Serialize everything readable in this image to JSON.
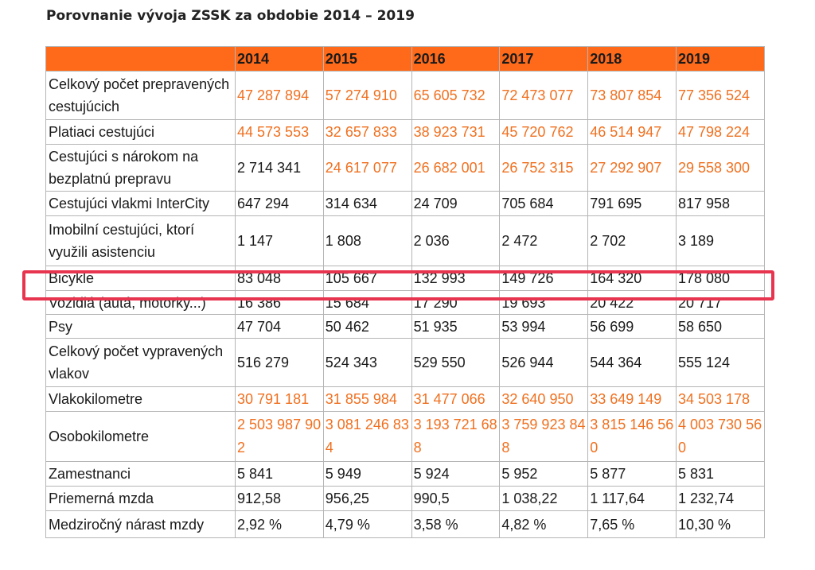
{
  "title": "Porovnanie vývoja ZSSK za obdobie 2014 – 2019",
  "colors": {
    "header_bg": "#ff6a1a",
    "value_orange": "#f0701f",
    "highlight": "#e8354f"
  },
  "years": [
    "2014",
    "2015",
    "2016",
    "2017",
    "2018",
    "2019"
  ],
  "rows": [
    {
      "label": "Celkový počet prepravených cestujúcich",
      "values": [
        "47 287 894",
        "57 274 910",
        "65 605 732",
        "72 473 077",
        "73 807 854",
        "77 356 524"
      ]
    },
    {
      "label": "Platiaci cestujúci",
      "values": [
        "44 573 553",
        "32 657 833",
        "38 923 731",
        "45 720 762",
        "46 514 947",
        "47 798 224"
      ]
    },
    {
      "label": "Cestujúci s nárokom na bezplatnú prepravu",
      "values": [
        "2 714 341",
        "24 617 077",
        "26 682 001",
        "26 752 315",
        "27 292 907",
        "29 558 300"
      ]
    },
    {
      "label": "Cestujúci vlakmi InterCity",
      "values": [
        "647 294",
        "314 634",
        "24 709",
        "705 684",
        "791 695",
        "817 958"
      ]
    },
    {
      "label": "Imobilní cestujúci, ktorí využili asistenciu",
      "values": [
        "1 147",
        "1 808",
        "2 036",
        "2 472",
        "2 702",
        "3 189"
      ]
    },
    {
      "label": "Bicykle",
      "values": [
        "83 048",
        "105 667",
        "132 993",
        "149 726",
        "164 320",
        "178 080"
      ]
    },
    {
      "label": "Vozidlá (autá, motorky...)",
      "values": [
        "16 386",
        "15 684",
        "17 290",
        "19 693",
        "20 422",
        "20 717"
      ]
    },
    {
      "label": "Psy",
      "values": [
        "47 704",
        "50 462",
        "51 935",
        "53 994",
        "56 699",
        "58 650"
      ]
    },
    {
      "label": "Celkový počet vypravených vlakov",
      "values": [
        "516 279",
        "524 343",
        "529 550",
        "526 944",
        "544 364",
        "555 124"
      ]
    },
    {
      "label": "Vlakokilometre",
      "values": [
        "30 791 181",
        "31 855 984",
        "31 477 066",
        "32 640 950",
        "33 649 149",
        "34 503 178"
      ]
    },
    {
      "label": "Osobokilometre",
      "values": [
        "2 503 987 902",
        "3 081 246 834",
        "3 193 721 688",
        "3 759 923 848",
        "3 815 146 560",
        "4 003 730 560"
      ]
    },
    {
      "label": "Zamestnanci",
      "values": [
        "5 841",
        "5 949",
        "5 924",
        "5 952",
        "5 877",
        "5 831"
      ]
    },
    {
      "label": "Priemerná mzda",
      "values": [
        "912,58",
        "956,25",
        "990,5",
        "1 038,22",
        "1 117,64",
        "1 232,74"
      ]
    },
    {
      "label": "Medziročný nárast mzdy",
      "values": [
        "2,92 %",
        "4,79 %",
        "3,58 %",
        "4,82 %",
        "7,65 %",
        "10,30 %"
      ]
    }
  ]
}
